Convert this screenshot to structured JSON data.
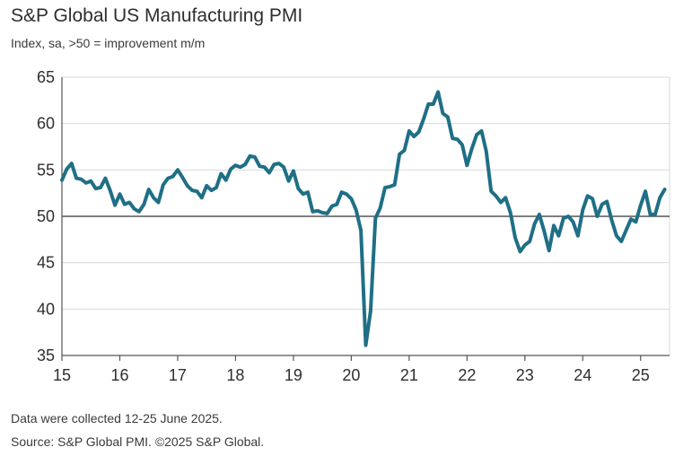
{
  "title": "S&P Global US Manufacturing PMI",
  "subtitle": "Index, sa, >50 = improvement m/m",
  "notes": {
    "collected": "Data were collected 12-25 June 2025.",
    "source": "Source: S&P Global PMI. ©2025 S&P Global."
  },
  "colors": {
    "line": "#1f6f86",
    "grid": "#d9d9d9",
    "axis": "#555555",
    "refline": "#555555"
  },
  "chart_data": {
    "type": "line",
    "title": "S&P Global US Manufacturing PMI",
    "ylabel": "Index, sa, >50 = improvement m/m",
    "ylim": [
      35,
      65
    ],
    "yticks": [
      35,
      40,
      45,
      50,
      55,
      60,
      65
    ],
    "xlim": [
      2015.0,
      2025.5
    ],
    "xticks": [
      {
        "value": 2015,
        "label": "15"
      },
      {
        "value": 2016,
        "label": "16"
      },
      {
        "value": 2017,
        "label": "17"
      },
      {
        "value": 2018,
        "label": "18"
      },
      {
        "value": 2019,
        "label": "19"
      },
      {
        "value": 2020,
        "label": "20"
      },
      {
        "value": 2021,
        "label": "21"
      },
      {
        "value": 2022,
        "label": "22"
      },
      {
        "value": 2023,
        "label": "23"
      },
      {
        "value": 2024,
        "label": "24"
      },
      {
        "value": 2025,
        "label": "25"
      }
    ],
    "reference_line": 50,
    "grid": true,
    "series": [
      {
        "x": [
          2015.0,
          2015.083,
          2015.167,
          2015.25,
          2015.333,
          2015.417,
          2015.5,
          2015.583,
          2015.667,
          2015.75,
          2015.833,
          2015.917,
          2016.0,
          2016.083,
          2016.167,
          2016.25,
          2016.333,
          2016.417,
          2016.5,
          2016.583,
          2016.667,
          2016.75,
          2016.833,
          2016.917,
          2017.0,
          2017.083,
          2017.167,
          2017.25,
          2017.333,
          2017.417,
          2017.5,
          2017.583,
          2017.667,
          2017.75,
          2017.833,
          2017.917,
          2018.0,
          2018.083,
          2018.167,
          2018.25,
          2018.333,
          2018.417,
          2018.5,
          2018.583,
          2018.667,
          2018.75,
          2018.833,
          2018.917,
          2019.0,
          2019.083,
          2019.167,
          2019.25,
          2019.333,
          2019.417,
          2019.5,
          2019.583,
          2019.667,
          2019.75,
          2019.833,
          2019.917,
          2020.0,
          2020.083,
          2020.167,
          2020.25,
          2020.333,
          2020.417,
          2020.5,
          2020.583,
          2020.667,
          2020.75,
          2020.833,
          2020.917,
          2021.0,
          2021.083,
          2021.167,
          2021.25,
          2021.333,
          2021.417,
          2021.5,
          2021.583,
          2021.667,
          2021.75,
          2021.833,
          2021.917,
          2022.0,
          2022.083,
          2022.167,
          2022.25,
          2022.333,
          2022.417,
          2022.5,
          2022.583,
          2022.667,
          2022.75,
          2022.833,
          2022.917,
          2023.0,
          2023.083,
          2023.167,
          2023.25,
          2023.333,
          2023.417,
          2023.5,
          2023.583,
          2023.667,
          2023.75,
          2023.833,
          2023.917,
          2024.0,
          2024.083,
          2024.167,
          2024.25,
          2024.333,
          2024.417,
          2024.5,
          2024.583,
          2024.667,
          2024.75,
          2024.833,
          2024.917,
          2025.0,
          2025.083,
          2025.167,
          2025.25,
          2025.333,
          2025.417
        ],
        "y": [
          53.9,
          55.1,
          55.7,
          54.1,
          54.0,
          53.6,
          53.8,
          53.0,
          53.1,
          54.1,
          52.8,
          51.2,
          52.4,
          51.3,
          51.5,
          50.8,
          50.5,
          51.3,
          52.9,
          52.0,
          51.5,
          53.4,
          54.1,
          54.3,
          55.0,
          54.2,
          53.3,
          52.8,
          52.7,
          52.0,
          53.3,
          52.8,
          53.1,
          54.6,
          53.9,
          55.1,
          55.5,
          55.3,
          55.6,
          56.5,
          56.4,
          55.4,
          55.3,
          54.7,
          55.6,
          55.7,
          55.3,
          53.8,
          54.9,
          53.0,
          52.4,
          52.6,
          50.5,
          50.6,
          50.4,
          50.3,
          51.1,
          51.3,
          52.6,
          52.4,
          51.9,
          50.7,
          48.5,
          36.1,
          39.8,
          49.8,
          50.9,
          53.1,
          53.2,
          53.4,
          56.7,
          57.1,
          59.2,
          58.6,
          59.1,
          60.5,
          62.1,
          62.1,
          63.4,
          61.1,
          60.7,
          58.4,
          58.3,
          57.7,
          55.5,
          57.3,
          58.8,
          59.2,
          57.0,
          52.7,
          52.2,
          51.5,
          52.0,
          50.4,
          47.7,
          46.2,
          46.9,
          47.3,
          49.2,
          50.2,
          48.4,
          46.3,
          49.0,
          47.9,
          49.8,
          50.0,
          49.4,
          47.9,
          50.7,
          52.2,
          51.9,
          50.0,
          51.3,
          51.6,
          49.6,
          47.9,
          47.3,
          48.5,
          49.7,
          49.4,
          51.2,
          52.7,
          50.2,
          50.2,
          52.0,
          52.9
        ]
      }
    ]
  }
}
